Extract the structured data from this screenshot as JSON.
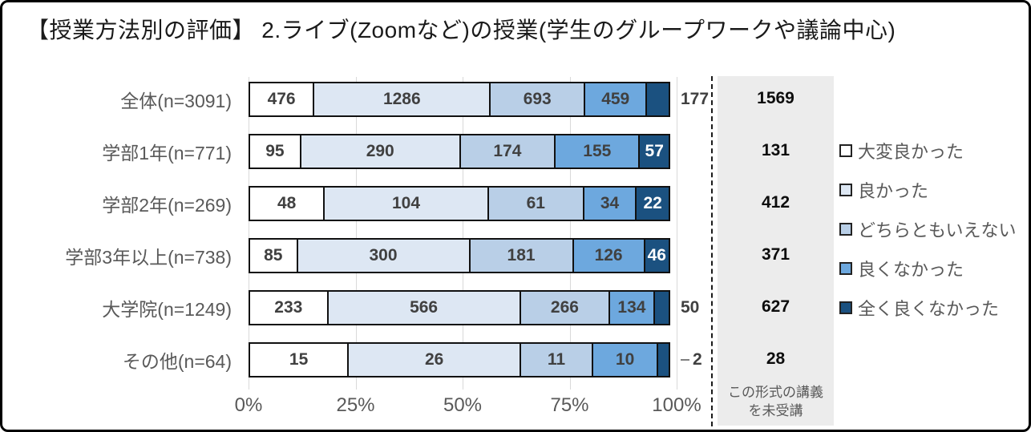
{
  "chart_data": {
    "type": "bar",
    "stacked": true,
    "orientation": "horizontal",
    "title": "【授業方法別の評価】 2.ライブ(Zoomなど)の授業(学生のグループワークや議論中心)",
    "categories": [
      "全体(n=3091)",
      "学部1年(n=771)",
      "学部2年(n=269)",
      "学部3年以上(n=738)",
      "大学院(n=1249)",
      "その他(n=64)"
    ],
    "series": [
      {
        "name": "大変良かった",
        "color": "#ffffff",
        "value_color": "#404040",
        "values": [
          476,
          95,
          48,
          85,
          233,
          15
        ]
      },
      {
        "name": "良かった",
        "color": "#dde7f3",
        "value_color": "#404040",
        "values": [
          1286,
          290,
          104,
          300,
          566,
          26
        ]
      },
      {
        "name": "どちらともいえない",
        "color": "#b9cfe7",
        "value_color": "#404040",
        "values": [
          693,
          174,
          61,
          181,
          266,
          11
        ]
      },
      {
        "name": "良くなかった",
        "color": "#6da8de",
        "value_color": "#404040",
        "values": [
          459,
          155,
          34,
          126,
          134,
          10
        ]
      },
      {
        "name": "全く良くなかった",
        "color": "#1b5180",
        "value_color": "#ffffff",
        "values": [
          177,
          57,
          22,
          46,
          50,
          2
        ]
      }
    ],
    "unattended": {
      "label_line1": "この形式の講義",
      "label_line2": "を未受講",
      "values": [
        1569,
        131,
        412,
        371,
        627,
        28
      ],
      "bg_color": "#ececec"
    },
    "x_ticks": [
      "0%",
      "25%",
      "50%",
      "75%",
      "100%"
    ],
    "xlim": [
      0,
      100
    ],
    "grid": true,
    "legend_position": "right"
  }
}
